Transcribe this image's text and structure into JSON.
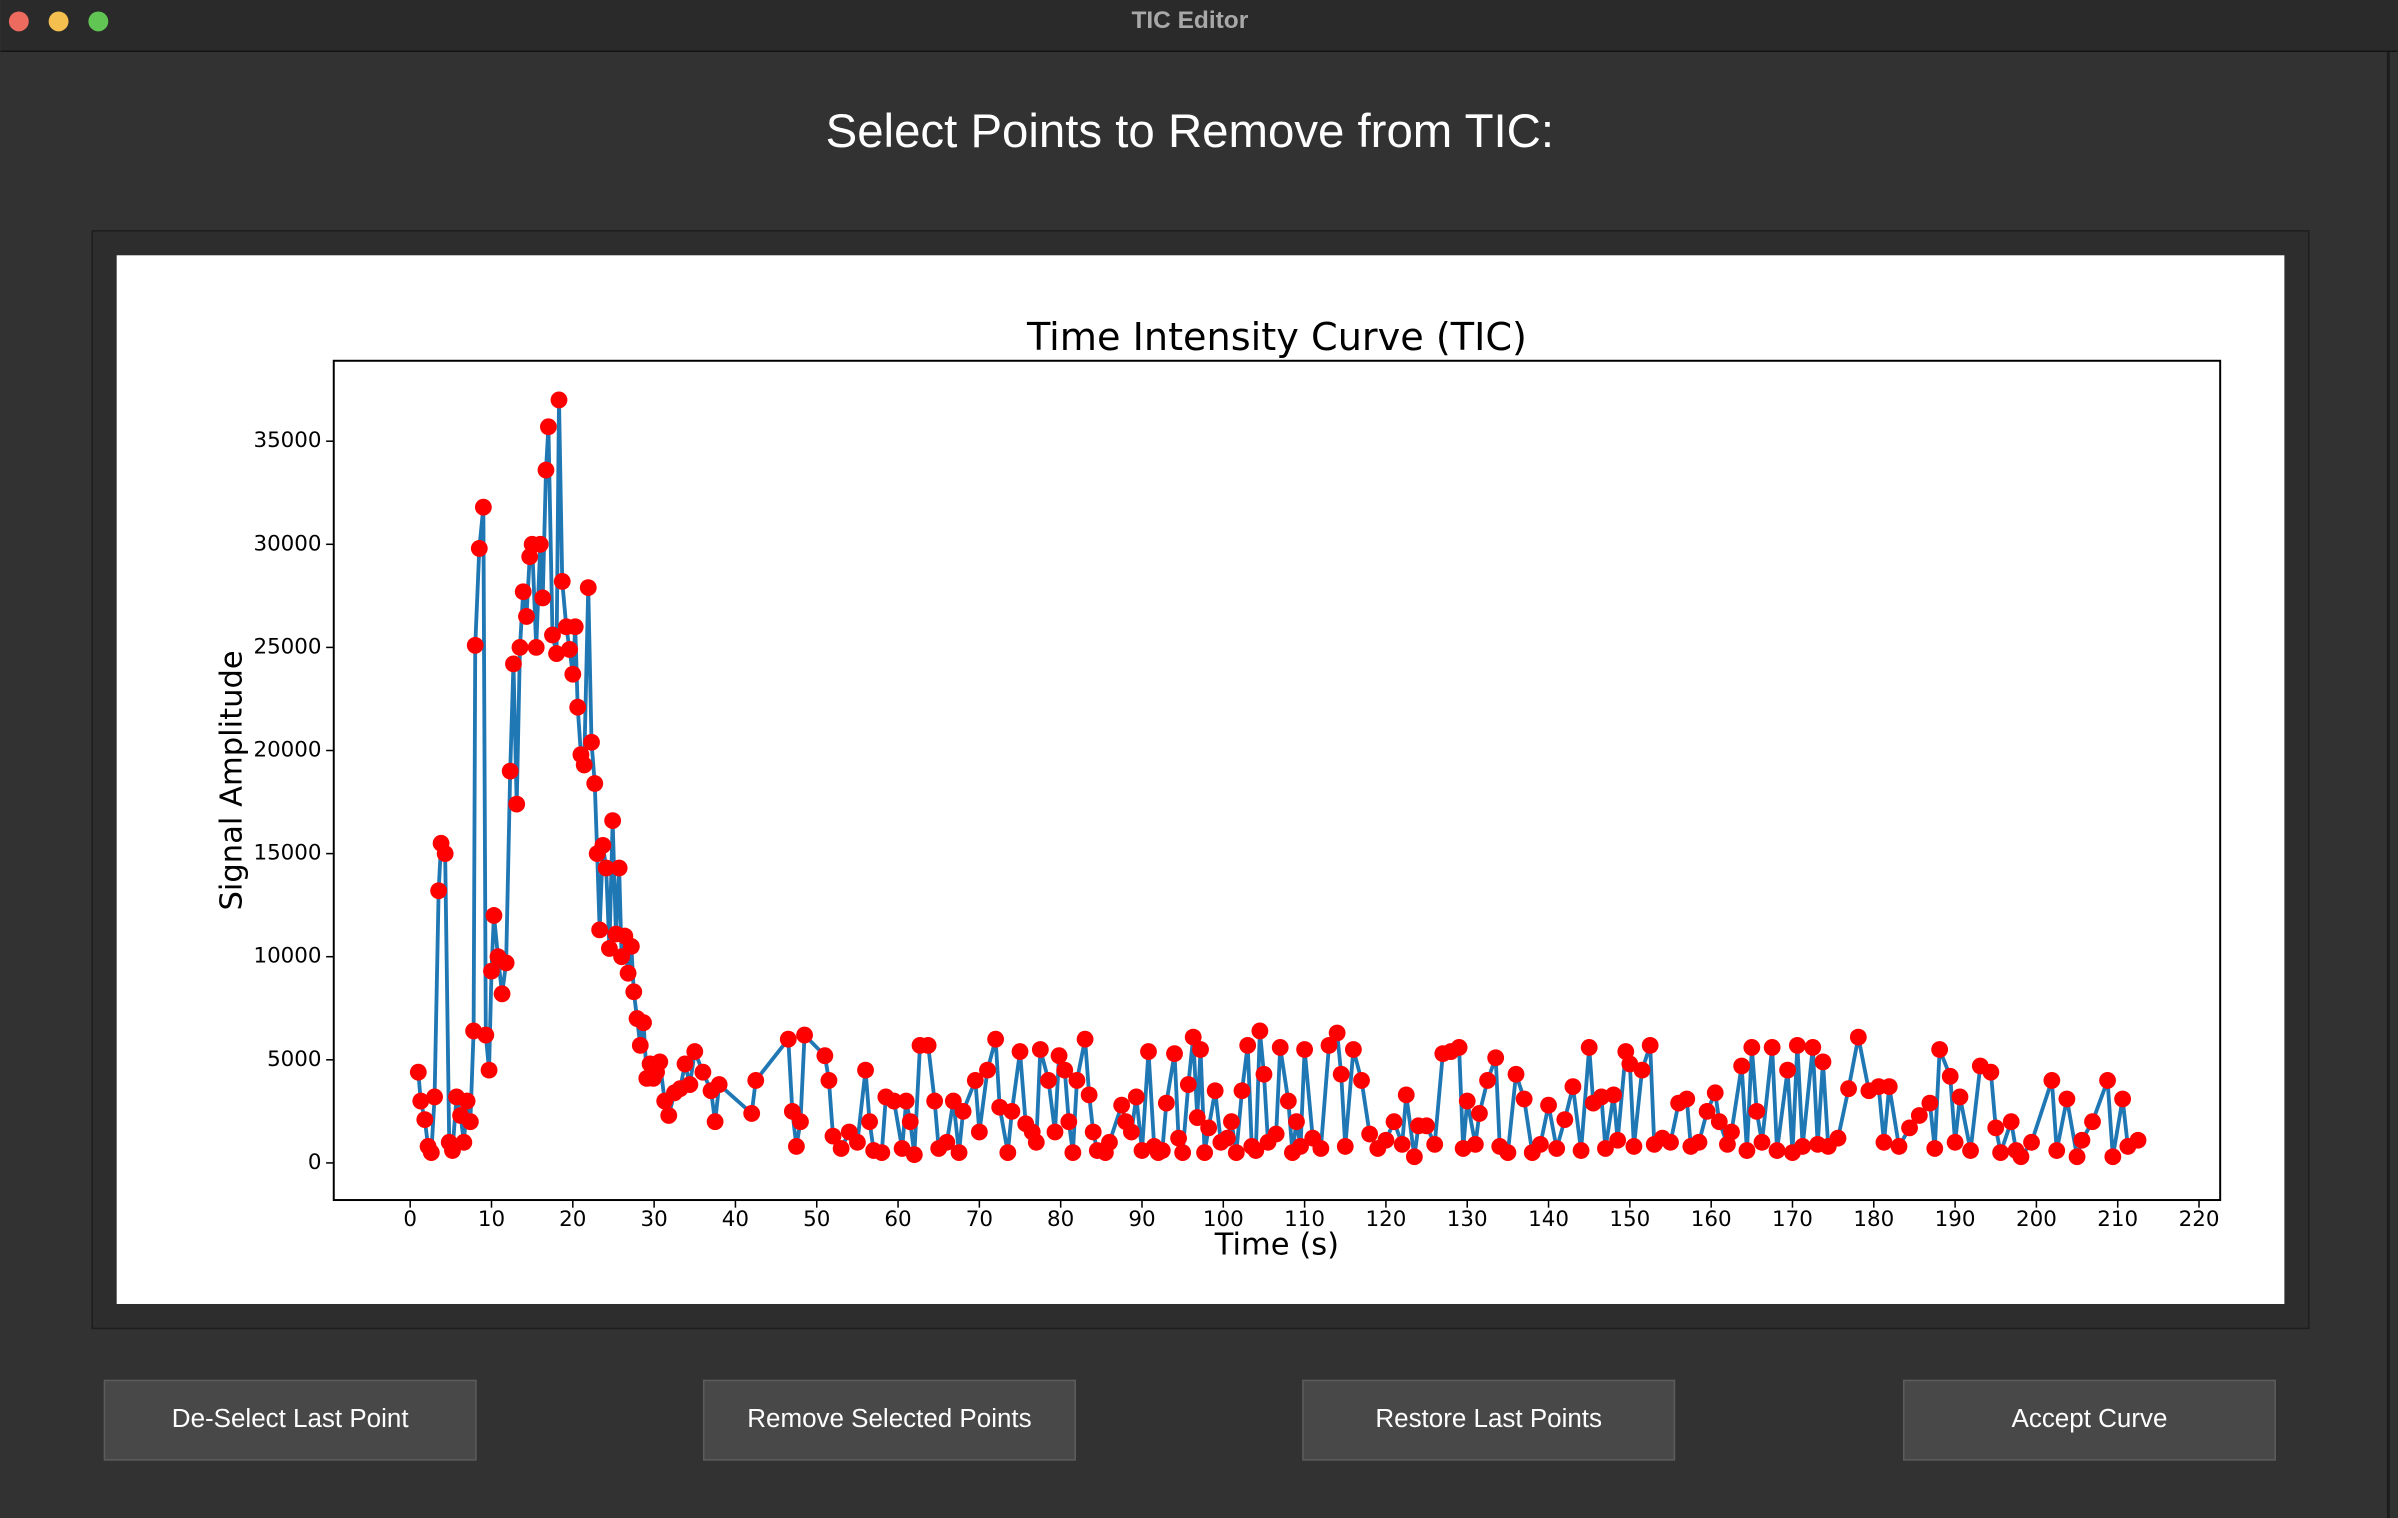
{
  "window": {
    "title": "TIC Editor"
  },
  "heading": "Select Points to Remove from TIC:",
  "buttons": [
    "De-Select Last Point",
    "Remove Selected Points",
    "Restore Last Points",
    "Accept Curve"
  ],
  "chart_data": {
    "type": "line",
    "title": "Time Intensity Curve (TIC)",
    "xlabel": "Time (s)",
    "ylabel": "Signal Amplitude",
    "color": "#1f77b4",
    "marker_color": "#ff0000",
    "xlim": [
      -9.4,
      222.6
    ],
    "ylim": [
      -1800,
      38900
    ],
    "xticks": [
      0,
      10,
      20,
      30,
      40,
      50,
      60,
      70,
      80,
      90,
      100,
      110,
      120,
      130,
      140,
      150,
      160,
      170,
      180,
      190,
      200,
      210,
      220
    ],
    "yticks": [
      0,
      5000,
      10000,
      15000,
      20000,
      25000,
      30000,
      35000
    ],
    "x": [
      1,
      1.3,
      1.8,
      2.2,
      2.6,
      3,
      3.5,
      3.8,
      4.3,
      4.8,
      5.2,
      5.7,
      6.2,
      6.6,
      7,
      7.4,
      7.8,
      8,
      8.5,
      9,
      9.3,
      9.7,
      10,
      10.3,
      10.8,
      11.3,
      11.8,
      12.3,
      12.7,
      13.1,
      13.5,
      13.9,
      14.3,
      14.7,
      15,
      15.5,
      16,
      16.3,
      16.7,
      17,
      17.5,
      18,
      18.3,
      18.7,
      19.2,
      19.6,
      20,
      20.3,
      20.6,
      21,
      21.4,
      21.9,
      22.3,
      22.7,
      23,
      23.3,
      23.7,
      24.1,
      24.5,
      24.9,
      25.3,
      25.7,
      26,
      26.4,
      26.8,
      27.2,
      27.5,
      27.9,
      28.3,
      28.7,
      29.1,
      29.5,
      29.9,
      30.3,
      30.7,
      31.3,
      31.8,
      32.5,
      33.2,
      33.8,
      34.4,
      35,
      36,
      37,
      37.5,
      38,
      42,
      42.5,
      46.5,
      47,
      47.5,
      48,
      48.5,
      51,
      51.5,
      52,
      53,
      54,
      55,
      56,
      56.5,
      57,
      58,
      58.5,
      59.5,
      60.5,
      61,
      61.5,
      62,
      62.7,
      63.7,
      64.5,
      65,
      66,
      66.8,
      67.5,
      68,
      69.5,
      70,
      71,
      72,
      72.5,
      73.5,
      74,
      75,
      75.7,
      76.5,
      77,
      77.5,
      78.5,
      79.3,
      79.8,
      80.5,
      81,
      81.5,
      82,
      83,
      83.5,
      84,
      84.5,
      85.5,
      86,
      87.5,
      88,
      88.7,
      89.3,
      90,
      90.8,
      91.5,
      92,
      92.5,
      93,
      94,
      94.5,
      95,
      95.7,
      96.3,
      96.8,
      97.2,
      97.7,
      98.2,
      99,
      99.7,
      100.5,
      101,
      101.6,
      102.3,
      103,
      103.5,
      104,
      104.5,
      105,
      105.5,
      106.5,
      107,
      108,
      108.5,
      109,
      109.5,
      110,
      111,
      112,
      113,
      114,
      114.5,
      115,
      116,
      117,
      118,
      119,
      120,
      121,
      122,
      122.5,
      123.5,
      124,
      125,
      126,
      127,
      128,
      129,
      129.5,
      130,
      131,
      131.5,
      132.5,
      133.5,
      134,
      135,
      136,
      137,
      138,
      139,
      140,
      141,
      142,
      143,
      144,
      145,
      145.5,
      146.5,
      147,
      148,
      148.5,
      149.5,
      150,
      150.5,
      151.5,
      152.5,
      153,
      154,
      155,
      156,
      157,
      157.5,
      158.5,
      159.5,
      160.5,
      161,
      162,
      162.5,
      163.75,
      164.4,
      165,
      165.6,
      166.25,
      167.5,
      168.1,
      169.4,
      170,
      170.6,
      171.25,
      172.5,
      173.1,
      173.75,
      174.4,
      175.6,
      176.9,
      178.1,
      179.4,
      180.6,
      181.25,
      181.9,
      183.1,
      184.4,
      185.6,
      186.9,
      187.5,
      188.1,
      189.4,
      190,
      190.6,
      191.9,
      193.1,
      194.4,
      195,
      195.6,
      196.9,
      197.5,
      198.1,
      199.4,
      201.9,
      202.5,
      203.75,
      205,
      205.6,
      206.9,
      208.75,
      209.4,
      210.6,
      211.25,
      212.5
    ],
    "values": [
      4400,
      3000,
      2100,
      800,
      500,
      3200,
      13200,
      15500,
      15000,
      1000,
      600,
      3200,
      2300,
      1000,
      3000,
      2000,
      6400,
      25100,
      29800,
      31800,
      6200,
      4500,
      9300,
      12000,
      10000,
      8200,
      9700,
      19000,
      24200,
      17400,
      25000,
      27700,
      26500,
      29400,
      30000,
      25000,
      30000,
      27400,
      33600,
      35700,
      25600,
      24700,
      37000,
      28200,
      26000,
      24900,
      23700,
      26000,
      22100,
      19800,
      19300,
      27900,
      20400,
      18400,
      15000,
      11300,
      15400,
      14300,
      10400,
      16600,
      11100,
      14300,
      10000,
      11000,
      9200,
      10500,
      8300,
      7000,
      5700,
      6800,
      4100,
      4800,
      4100,
      4400,
      4900,
      3000,
      2300,
      3400,
      3600,
      4800,
      3800,
      5400,
      4400,
      3500,
      2000,
      3800,
      2400,
      4000,
      6000,
      2500,
      800,
      2000,
      6200,
      5200,
      4000,
      1300,
      700,
      1500,
      1000,
      4500,
      2000,
      600,
      500,
      3200,
      3000,
      700,
      3000,
      2000,
      400,
      5700,
      5700,
      3000,
      700,
      1000,
      3000,
      500,
      2500,
      4000,
      1500,
      4500,
      6000,
      2700,
      500,
      2500,
      5400,
      1900,
      1500,
      1000,
      5500,
      4000,
      1500,
      5200,
      4500,
      2000,
      500,
      4000,
      6000,
      3300,
      1500,
      600,
      500,
      1000,
      2800,
      2000,
      1500,
      3200,
      600,
      5400,
      800,
      500,
      600,
      2900,
      5300,
      1200,
      500,
      3800,
      6100,
      2200,
      5500,
      500,
      1700,
      3500,
      1000,
      1200,
      2000,
      500,
      3500,
      5700,
      800,
      600,
      6400,
      4300,
      1000,
      1400,
      5600,
      3000,
      500,
      2000,
      800,
      5500,
      1200,
      700,
      5700,
      6300,
      4300,
      800,
      5500,
      4000,
      1400,
      700,
      1100,
      2000,
      900,
      3300,
      300,
      1800,
      1800,
      900,
      5300,
      5400,
      5600,
      700,
      3000,
      900,
      2400,
      4000,
      5100,
      800,
      500,
      4300,
      3100,
      500,
      900,
      2800,
      700,
      2100,
      3700,
      600,
      5600,
      2900,
      3200,
      700,
      3300,
      1100,
      5400,
      4800,
      800,
      4500,
      5700,
      900,
      1200,
      1000,
      2900,
      3100,
      800,
      1000,
      2500,
      3400,
      2000,
      900,
      1500,
      4700,
      600,
      5600,
      2500,
      1000,
      5600,
      600,
      4500,
      500,
      5700,
      800,
      5600,
      900,
      4900,
      800,
      1200,
      3600,
      6100,
      3500,
      3700,
      1000,
      3700,
      800,
      1700,
      2300,
      2900,
      700,
      5500,
      4200,
      1000,
      3200,
      600,
      4700,
      4400,
      1700,
      500,
      2000,
      600,
      300,
      1000,
      4000,
      600,
      3100,
      300,
      1100,
      2000,
      4000,
      300,
      3100,
      800,
      1100
    ]
  }
}
